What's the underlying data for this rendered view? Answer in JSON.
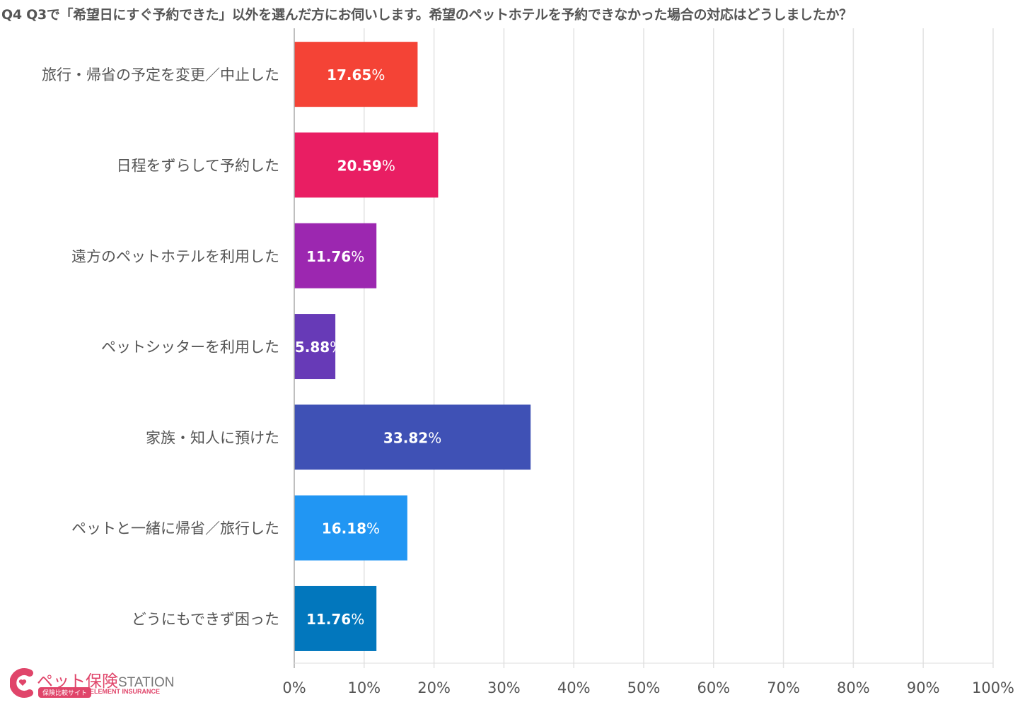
{
  "chart_data": {
    "type": "bar",
    "orientation": "horizontal",
    "title": "Q4 Q3で「希望日にすぐ予約できた」以外を選んだ方にお伺いします。希望のペットホテルを予約できなかった場合の対応はどうしましたか？",
    "categories": [
      "旅行・帰省の予定を変更／中止した",
      "日程をずらして予約した",
      "遠方のペットホテルを利用した",
      "ペットシッターを利用した",
      "家族・知人に預けた",
      "ペットと一緒に帰省／旅行した",
      "どうにもできず困った"
    ],
    "values": [
      17.65,
      20.59,
      11.76,
      5.88,
      33.82,
      16.18,
      11.76
    ],
    "data_labels": [
      "17.65",
      "20.59",
      "11.76",
      "5.88",
      "33.82",
      "16.18",
      "11.76"
    ],
    "unit": "%",
    "colors": [
      "#f44336",
      "#e91e63",
      "#9c27b0",
      "#673ab7",
      "#3f51b5",
      "#2196f3",
      "#0277bd"
    ],
    "xlim": [
      0,
      100
    ],
    "x_ticks": [
      "0%",
      "10%",
      "20%",
      "30%",
      "40%",
      "50%",
      "60%",
      "70%",
      "80%",
      "90%",
      "100%"
    ],
    "grid": true,
    "legend": "none"
  },
  "logo": {
    "main": "ペット保険",
    "station": "STATION",
    "badge": "保険比較サイト",
    "sub": "ELEMENT INSURANCE"
  }
}
